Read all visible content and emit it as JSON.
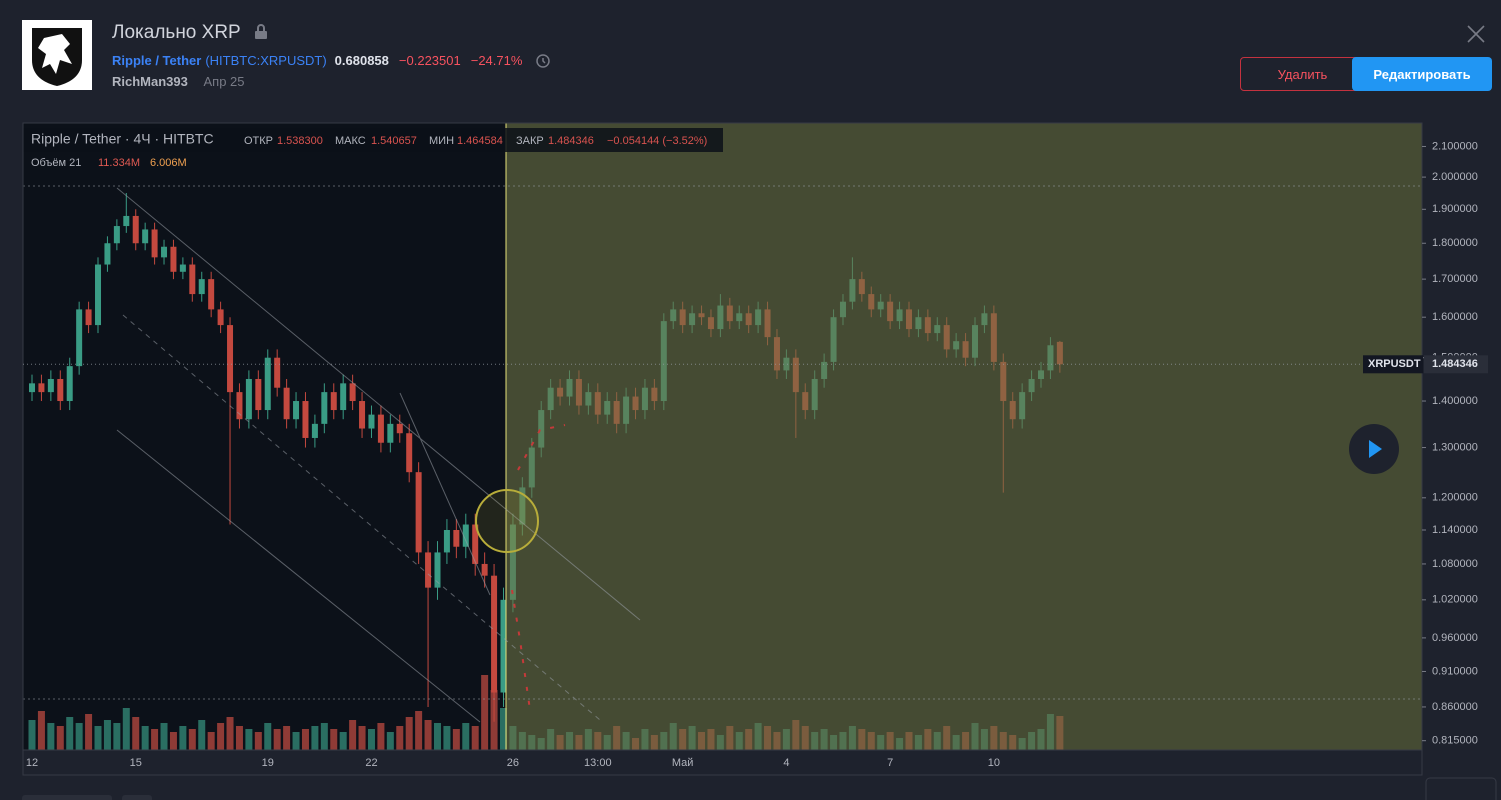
{
  "header": {
    "title": "Локально XRP",
    "symbol_name": "Ripple / Tether",
    "symbol_code": "(HITBTC:XRPUSDT)",
    "price": "0.680858",
    "change": "−0.223501",
    "change_pct": "−24.71%",
    "author": "RichMan393",
    "date": "Апр 25"
  },
  "buttons": {
    "delete": "Удалить",
    "edit": "Редактировать"
  },
  "chart_data": {
    "type": "candlestick",
    "symbol_label": "XRPUSDT",
    "legend": {
      "title": "Ripple / Tether · 4Ч · HITBTC",
      "open_label": "ОТКР",
      "open": "1.538300",
      "high_label": "МАКС",
      "high": "1.540657",
      "low_label": "МИН",
      "low": "1.464584",
      "close_label": "ЗАКР",
      "close": "1.484346",
      "change": "−0.054144 (−3.52%)",
      "volume_label": "Объём 21",
      "volume": "11.334M",
      "volume_ma": "6.006M"
    },
    "categories": [
      "12",
      null,
      null,
      null,
      null,
      null,
      null,
      null,
      null,
      null,
      null,
      "15",
      null,
      null,
      null,
      null,
      null,
      null,
      null,
      null,
      null,
      null,
      null,
      null,
      null,
      "19",
      null,
      null,
      null,
      null,
      null,
      null,
      null,
      null,
      null,
      null,
      "22",
      null,
      null,
      null,
      null,
      null,
      null,
      null,
      null,
      null,
      null,
      null,
      null,
      null,
      null,
      "26",
      null,
      null,
      null,
      null,
      null,
      null,
      null,
      null,
      "13:00",
      null,
      null,
      null,
      null,
      null,
      null,
      null,
      null,
      "Май",
      null,
      null,
      null,
      null,
      null,
      null,
      null,
      null,
      null,
      null,
      "4",
      null,
      null,
      null,
      null,
      null,
      null,
      null,
      null,
      null,
      null,
      "7",
      null,
      null,
      null,
      null,
      null,
      null,
      null,
      null,
      null,
      null,
      "10",
      null,
      null,
      null,
      null,
      null,
      null,
      null
    ],
    "open": [
      1.42,
      1.44,
      1.42,
      1.45,
      1.4,
      1.48,
      1.62,
      1.58,
      1.74,
      1.8,
      1.85,
      1.88,
      1.8,
      1.84,
      1.76,
      1.79,
      1.72,
      1.74,
      1.66,
      1.7,
      1.62,
      1.58,
      1.42,
      1.36,
      1.45,
      1.38,
      1.5,
      1.43,
      1.36,
      1.4,
      1.32,
      1.35,
      1.42,
      1.38,
      1.44,
      1.4,
      1.34,
      1.37,
      1.31,
      1.35,
      1.33,
      1.25,
      1.1,
      1.04,
      1.1,
      1.14,
      1.11,
      1.15,
      1.08,
      1.06,
      0.88,
      1.02,
      1.15,
      1.22,
      1.3,
      1.38,
      1.43,
      1.41,
      1.45,
      1.39,
      1.42,
      1.37,
      1.4,
      1.35,
      1.41,
      1.38,
      1.43,
      1.4,
      1.59,
      1.62,
      1.58,
      1.61,
      1.6,
      1.57,
      1.63,
      1.59,
      1.61,
      1.58,
      1.62,
      1.55,
      1.47,
      1.5,
      1.42,
      1.38,
      1.45,
      1.49,
      1.6,
      1.64,
      1.7,
      1.66,
      1.62,
      1.64,
      1.59,
      1.62,
      1.57,
      1.6,
      1.56,
      1.58,
      1.52,
      1.54,
      1.5,
      1.58,
      1.61,
      1.49,
      1.4,
      1.36,
      1.42,
      1.45,
      1.47,
      1.5383
    ],
    "high": [
      1.46,
      1.46,
      1.47,
      1.47,
      1.5,
      1.64,
      1.64,
      1.76,
      1.82,
      1.87,
      1.95,
      1.9,
      1.86,
      1.86,
      1.81,
      1.81,
      1.76,
      1.76,
      1.72,
      1.72,
      1.64,
      1.6,
      1.44,
      1.47,
      1.47,
      1.52,
      1.52,
      1.45,
      1.42,
      1.42,
      1.37,
      1.44,
      1.44,
      1.46,
      1.46,
      1.42,
      1.39,
      1.39,
      1.37,
      1.37,
      1.35,
      1.27,
      1.12,
      1.12,
      1.16,
      1.16,
      1.17,
      1.17,
      1.1,
      1.08,
      1.04,
      1.17,
      1.24,
      1.32,
      1.4,
      1.45,
      1.45,
      1.47,
      1.47,
      1.44,
      1.44,
      1.42,
      1.42,
      1.43,
      1.43,
      1.45,
      1.45,
      1.61,
      1.64,
      1.64,
      1.63,
      1.63,
      1.62,
      1.66,
      1.65,
      1.63,
      1.63,
      1.64,
      1.64,
      1.57,
      1.52,
      1.52,
      1.44,
      1.47,
      1.51,
      1.62,
      1.66,
      1.76,
      1.72,
      1.68,
      1.66,
      1.66,
      1.64,
      1.64,
      1.62,
      1.62,
      1.6,
      1.6,
      1.56,
      1.56,
      1.6,
      1.63,
      1.63,
      1.51,
      1.42,
      1.44,
      1.47,
      1.49,
      1.55,
      1.540657
    ],
    "low": [
      1.4,
      1.4,
      1.4,
      1.38,
      1.38,
      1.46,
      1.56,
      1.56,
      1.72,
      1.78,
      1.83,
      1.78,
      1.78,
      1.74,
      1.74,
      1.7,
      1.7,
      1.64,
      1.64,
      1.6,
      1.56,
      1.15,
      1.34,
      1.34,
      1.36,
      1.36,
      1.41,
      1.34,
      1.34,
      1.3,
      1.3,
      1.33,
      1.36,
      1.36,
      1.38,
      1.32,
      1.32,
      1.29,
      1.29,
      1.31,
      1.23,
      1.08,
      0.86,
      1.02,
      1.08,
      1.09,
      1.09,
      1.06,
      1.04,
      0.84,
      0.86,
      1.0,
      1.13,
      1.2,
      1.28,
      1.36,
      1.39,
      1.39,
      1.37,
      1.37,
      1.35,
      1.35,
      1.33,
      1.33,
      1.36,
      1.36,
      1.38,
      1.38,
      1.57,
      1.56,
      1.56,
      1.58,
      1.55,
      1.55,
      1.57,
      1.57,
      1.56,
      1.56,
      1.53,
      1.45,
      1.45,
      1.32,
      1.36,
      1.36,
      1.43,
      1.47,
      1.58,
      1.62,
      1.64,
      1.6,
      1.6,
      1.57,
      1.57,
      1.55,
      1.55,
      1.54,
      1.54,
      1.5,
      1.5,
      1.48,
      1.48,
      1.56,
      1.47,
      1.21,
      1.34,
      1.34,
      1.4,
      1.43,
      1.45,
      1.464584
    ],
    "close": [
      1.44,
      1.42,
      1.45,
      1.4,
      1.48,
      1.62,
      1.58,
      1.74,
      1.8,
      1.85,
      1.88,
      1.8,
      1.84,
      1.76,
      1.79,
      1.72,
      1.74,
      1.66,
      1.7,
      1.62,
      1.58,
      1.42,
      1.36,
      1.45,
      1.38,
      1.5,
      1.43,
      1.36,
      1.4,
      1.32,
      1.35,
      1.42,
      1.38,
      1.44,
      1.4,
      1.34,
      1.37,
      1.31,
      1.35,
      1.33,
      1.25,
      1.1,
      1.04,
      1.1,
      1.14,
      1.11,
      1.15,
      1.08,
      1.06,
      0.88,
      1.02,
      1.15,
      1.22,
      1.3,
      1.38,
      1.43,
      1.41,
      1.45,
      1.39,
      1.42,
      1.37,
      1.4,
      1.35,
      1.41,
      1.38,
      1.43,
      1.4,
      1.59,
      1.62,
      1.58,
      1.61,
      1.6,
      1.57,
      1.63,
      1.59,
      1.61,
      1.58,
      1.62,
      1.55,
      1.47,
      1.5,
      1.42,
      1.38,
      1.45,
      1.49,
      1.6,
      1.64,
      1.7,
      1.66,
      1.62,
      1.64,
      1.59,
      1.62,
      1.57,
      1.6,
      1.56,
      1.58,
      1.52,
      1.54,
      1.5,
      1.58,
      1.61,
      1.49,
      1.4,
      1.36,
      1.42,
      1.45,
      1.47,
      1.53,
      1.484346
    ],
    "volume": [
      10,
      13,
      9,
      8,
      11,
      9,
      12,
      8,
      10,
      9,
      14,
      11,
      8,
      7,
      9,
      6,
      8,
      7,
      10,
      6,
      9,
      11,
      8,
      7,
      6,
      9,
      7,
      8,
      6,
      7,
      8,
      9,
      7,
      6,
      10,
      8,
      7,
      9,
      6,
      8,
      11,
      13,
      10,
      9,
      8,
      7,
      9,
      8,
      25,
      20,
      14,
      8,
      6,
      5,
      4,
      7,
      5,
      6,
      5,
      7,
      6,
      5,
      8,
      6,
      4,
      7,
      5,
      6,
      9,
      7,
      8,
      6,
      7,
      5,
      8,
      6,
      7,
      9,
      8,
      6,
      7,
      10,
      8,
      6,
      7,
      5,
      6,
      8,
      7,
      6,
      5,
      6,
      4,
      6,
      5,
      7,
      6,
      8,
      5,
      6,
      9,
      7,
      8,
      6,
      5,
      4,
      6,
      7,
      12,
      11.334
    ],
    "ylim": [
      0.803,
      2.18
    ],
    "log_scale": true,
    "volume_lim": [
      0,
      60
    ],
    "yticks": [
      {
        "value": 2.1,
        "label": "2.100000"
      },
      {
        "value": 2.0,
        "label": "2.000000"
      },
      {
        "value": 1.9,
        "label": "1.900000"
      },
      {
        "value": 1.8,
        "label": "1.800000"
      },
      {
        "value": 1.7,
        "label": "1.700000"
      },
      {
        "value": 1.6,
        "label": "1.600000"
      },
      {
        "value": 1.5,
        "label": "1.500000"
      },
      {
        "value": 1.4,
        "label": "1.400000"
      },
      {
        "value": 1.3,
        "label": "1.300000"
      },
      {
        "value": 1.2,
        "label": "1.200000"
      },
      {
        "value": 1.14,
        "label": "1.140000"
      },
      {
        "value": 1.08,
        "label": "1.080000"
      },
      {
        "value": 1.02,
        "label": "1.020000"
      },
      {
        "value": 0.96,
        "label": "0.960000"
      },
      {
        "value": 0.91,
        "label": "0.910000"
      },
      {
        "value": 0.86,
        "label": "0.860000"
      },
      {
        "value": 0.815,
        "label": "0.815000"
      }
    ],
    "up_color": "#3a9c85",
    "down_color": "#c4493f",
    "up_volume_color": "#2a6e62",
    "down_volume_color": "#8f3b36"
  }
}
